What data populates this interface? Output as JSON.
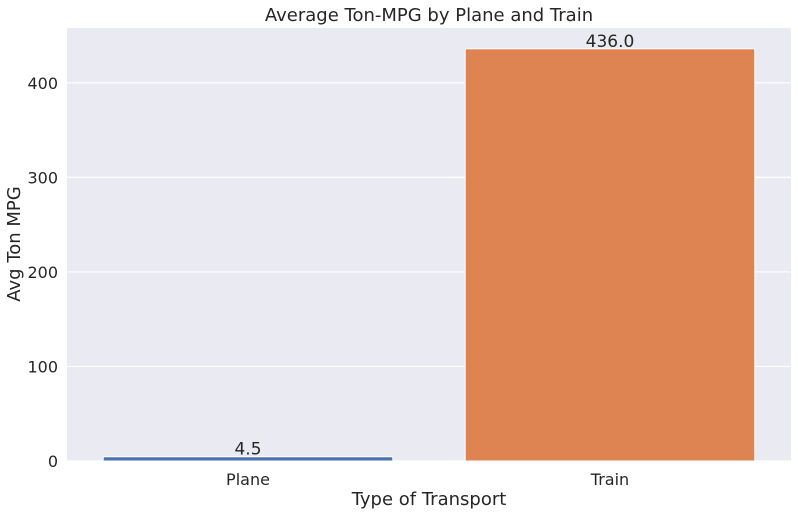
{
  "chart_data": {
    "type": "bar",
    "title": "Average Ton-MPG by Plane and Train",
    "xlabel": "Type of Transport",
    "ylabel": "Avg Ton MPG",
    "categories": [
      "Plane",
      "Train"
    ],
    "values": [
      4.5,
      436.0
    ],
    "value_labels": [
      "4.5",
      "436.0"
    ],
    "colors": [
      "#4c72b0",
      "#dd8452"
    ],
    "ylim": [
      0,
      458
    ],
    "yticks": [
      0,
      100,
      200,
      300,
      400
    ],
    "grid": true,
    "background": "#eaeaf2",
    "legend": "none"
  }
}
